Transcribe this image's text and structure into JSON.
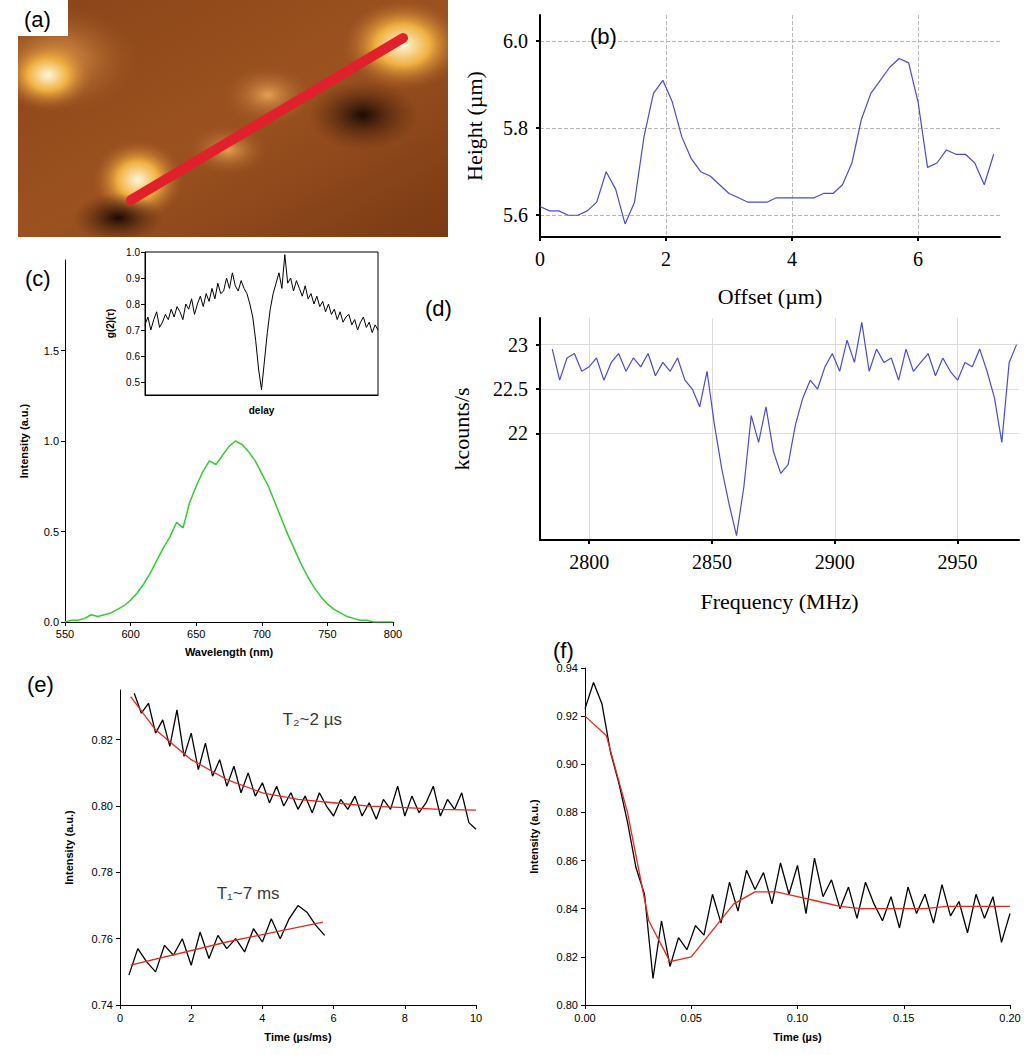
{
  "image_panel": {
    "label": "(a)"
  },
  "chart_data": [
    {
      "type": "line",
      "title": "(b)",
      "x_label": "Offset (µm)",
      "y_label": "Height (µm)",
      "xlim": [
        0,
        7.3
      ],
      "ylim": [
        5.55,
        6.06
      ],
      "xticks": [
        0,
        2,
        4,
        6
      ],
      "yticks": [
        5.6,
        5.8,
        {
          "value": 6,
          "label": "6.0"
        }
      ],
      "grid": true,
      "series": [
        {
          "color": "#4a4ad8",
          "x": [
            0,
            0.15,
            0.3,
            0.45,
            0.6,
            0.75,
            0.9,
            1.05,
            1.2,
            1.35,
            1.5,
            1.65,
            1.8,
            1.95,
            2.1,
            2.25,
            2.4,
            2.55,
            2.7,
            2.85,
            3.0,
            3.15,
            3.3,
            3.45,
            3.6,
            3.75,
            3.9,
            4.05,
            4.2,
            4.35,
            4.5,
            4.65,
            4.8,
            4.95,
            5.1,
            5.25,
            5.4,
            5.55,
            5.7,
            5.85,
            6.0,
            6.15,
            6.3,
            6.45,
            6.6,
            6.75,
            6.9,
            7.05,
            7.2
          ],
          "values": [
            5.62,
            5.61,
            5.61,
            5.6,
            5.6,
            5.61,
            5.63,
            5.7,
            5.66,
            5.58,
            5.63,
            5.78,
            5.88,
            5.91,
            5.86,
            5.78,
            5.73,
            5.7,
            5.69,
            5.67,
            5.65,
            5.64,
            5.63,
            5.63,
            5.63,
            5.64,
            5.64,
            5.64,
            5.64,
            5.64,
            5.65,
            5.65,
            5.67,
            5.72,
            5.82,
            5.88,
            5.91,
            5.94,
            5.96,
            5.95,
            5.86,
            5.71,
            5.72,
            5.75,
            5.74,
            5.74,
            5.72,
            5.67,
            5.74
          ]
        }
      ]
    },
    {
      "type": "line",
      "title": "(c)",
      "x_label": "Wavelength (nm)",
      "y_label": "Intensity (a.u.)",
      "xlim": [
        550,
        800
      ],
      "ylim": [
        0,
        2.0
      ],
      "xticks": [
        550,
        600,
        650,
        700,
        750,
        800
      ],
      "yticks": [
        {
          "value": 0,
          "label": "0.0"
        },
        0.5,
        {
          "value": 1,
          "label": "1.0"
        },
        1.5
      ],
      "grid": false,
      "series": [
        {
          "color": "#33cc33",
          "x": [
            550,
            555,
            560,
            565,
            570,
            575,
            580,
            585,
            590,
            595,
            600,
            605,
            610,
            615,
            620,
            625,
            630,
            635,
            640,
            645,
            650,
            655,
            660,
            665,
            670,
            675,
            680,
            685,
            690,
            695,
            700,
            705,
            710,
            715,
            720,
            725,
            730,
            735,
            740,
            745,
            750,
            755,
            760,
            765,
            770,
            775,
            780,
            785,
            790,
            795,
            800
          ],
          "values": [
            0.0,
            0.01,
            0.01,
            0.02,
            0.04,
            0.03,
            0.04,
            0.05,
            0.07,
            0.09,
            0.12,
            0.16,
            0.21,
            0.27,
            0.34,
            0.41,
            0.47,
            0.55,
            0.52,
            0.66,
            0.75,
            0.83,
            0.89,
            0.87,
            0.92,
            0.97,
            1.0,
            0.98,
            0.94,
            0.89,
            0.82,
            0.75,
            0.66,
            0.57,
            0.48,
            0.4,
            0.32,
            0.25,
            0.19,
            0.14,
            0.1,
            0.07,
            0.05,
            0.03,
            0.02,
            0.01,
            0.01,
            0.0,
            0.0,
            0.0,
            0.0
          ]
        }
      ]
    },
    {
      "type": "line",
      "x_label": "delay",
      "y_label": "g(2)(τ)",
      "xlim": [
        -40,
        40
      ],
      "ylim": [
        0.45,
        1.0
      ],
      "yticks": [
        0.5,
        0.6,
        0.7,
        0.8,
        0.9,
        {
          "value": 1,
          "label": "1.0"
        }
      ],
      "tick_labels": "y",
      "grid": false,
      "series": [
        {
          "color": "#000000",
          "x": [
            -40,
            -39,
            -38,
            -37,
            -36,
            -35,
            -34,
            -33,
            -32,
            -31,
            -30,
            -29,
            -28,
            -27,
            -26,
            -25,
            -24,
            -23,
            -22,
            -21,
            -20,
            -19,
            -18,
            -17,
            -16,
            -15,
            -14,
            -13,
            -12,
            -11,
            -10,
            -9,
            -8,
            -7,
            -6,
            -5,
            -4,
            -3,
            -2,
            -1,
            0,
            1,
            2,
            3,
            4,
            5,
            6,
            7,
            8,
            9,
            10,
            11,
            12,
            13,
            14,
            15,
            16,
            17,
            18,
            19,
            20,
            21,
            22,
            23,
            24,
            25,
            26,
            27,
            28,
            29,
            30,
            31,
            32,
            33,
            34,
            35,
            36,
            37,
            38,
            39,
            40
          ],
          "values": [
            0.72,
            0.75,
            0.7,
            0.74,
            0.77,
            0.71,
            0.73,
            0.76,
            0.74,
            0.78,
            0.75,
            0.79,
            0.77,
            0.74,
            0.8,
            0.78,
            0.82,
            0.76,
            0.8,
            0.83,
            0.79,
            0.84,
            0.81,
            0.86,
            0.82,
            0.88,
            0.84,
            0.85,
            0.9,
            0.86,
            0.92,
            0.87,
            0.85,
            0.89,
            0.86,
            0.84,
            0.8,
            0.75,
            0.66,
            0.55,
            0.47,
            0.58,
            0.69,
            0.78,
            0.84,
            0.88,
            0.92,
            0.86,
            0.99,
            0.88,
            0.9,
            0.85,
            0.89,
            0.86,
            0.83,
            0.87,
            0.82,
            0.84,
            0.8,
            0.83,
            0.79,
            0.81,
            0.77,
            0.8,
            0.76,
            0.78,
            0.74,
            0.77,
            0.73,
            0.75,
            0.76,
            0.72,
            0.74,
            0.7,
            0.73,
            0.75,
            0.71,
            0.73,
            0.69,
            0.72,
            0.7
          ]
        }
      ]
    },
    {
      "type": "line",
      "title": "(d)",
      "x_label": "Frequency (MHz)",
      "y_label": "kcounts/s",
      "xlim": [
        2780,
        2975
      ],
      "ylim": [
        20.8,
        23.3
      ],
      "xticks": [
        2800,
        2850,
        2900,
        2950
      ],
      "yticks": [
        22,
        22.5,
        23
      ],
      "grid": true,
      "series": [
        {
          "color": "#4a4ad8",
          "x": [
            2785,
            2788,
            2791,
            2794,
            2797,
            2800,
            2803,
            2806,
            2809,
            2812,
            2815,
            2818,
            2821,
            2824,
            2827,
            2830,
            2833,
            2836,
            2839,
            2842,
            2845,
            2848,
            2851,
            2854,
            2857,
            2860,
            2863,
            2866,
            2869,
            2872,
            2875,
            2878,
            2881,
            2884,
            2887,
            2890,
            2893,
            2896,
            2899,
            2902,
            2905,
            2908,
            2911,
            2914,
            2917,
            2920,
            2923,
            2926,
            2929,
            2932,
            2935,
            2938,
            2941,
            2944,
            2947,
            2950,
            2953,
            2956,
            2959,
            2962,
            2965,
            2968,
            2971,
            2974
          ],
          "values": [
            22.95,
            22.6,
            22.85,
            22.9,
            22.7,
            22.75,
            22.85,
            22.6,
            22.8,
            22.9,
            22.7,
            22.85,
            22.75,
            22.9,
            22.65,
            22.8,
            22.7,
            22.85,
            22.6,
            22.5,
            22.3,
            22.7,
            22.1,
            21.6,
            21.2,
            20.85,
            21.4,
            22.2,
            21.9,
            22.3,
            21.8,
            21.55,
            21.65,
            22.1,
            22.4,
            22.6,
            22.5,
            22.75,
            22.9,
            22.7,
            23.05,
            22.8,
            23.25,
            22.7,
            22.95,
            22.8,
            22.85,
            22.6,
            22.95,
            22.7,
            22.8,
            22.9,
            22.65,
            22.85,
            22.7,
            22.6,
            22.8,
            22.75,
            22.95,
            22.7,
            22.4,
            21.9,
            22.8,
            23.0
          ]
        }
      ]
    },
    {
      "type": "line",
      "title": "(e)",
      "x_label": "Time (µs/ms)",
      "y_label": "Intensity (a.u.)",
      "xlim": [
        0,
        10
      ],
      "ylim": [
        0.74,
        0.835
      ],
      "xticks": [
        0,
        2,
        4,
        6,
        8,
        10
      ],
      "yticks": [
        0.74,
        0.76,
        0.78,
        {
          "value": 0.8,
          "label": "0.80"
        },
        0.82
      ],
      "grid": false,
      "annotations": [
        {
          "text": "T₂~2 µs",
          "x": 5.4,
          "y": 0.826
        },
        {
          "text": "T₁~7 ms",
          "x": 3.6,
          "y": 0.7735
        }
      ],
      "series": [
        {
          "color": "#000000",
          "x": [
            0.4,
            0.6,
            0.8,
            1.0,
            1.2,
            1.4,
            1.6,
            1.8,
            2.0,
            2.2,
            2.4,
            2.6,
            2.8,
            3.0,
            3.2,
            3.4,
            3.6,
            3.8,
            4.0,
            4.2,
            4.4,
            4.6,
            4.8,
            5.0,
            5.2,
            5.4,
            5.6,
            5.8,
            6.0,
            6.2,
            6.4,
            6.6,
            6.8,
            7.0,
            7.2,
            7.4,
            7.6,
            7.8,
            8.0,
            8.2,
            8.4,
            8.6,
            8.8,
            9.0,
            9.2,
            9.4,
            9.6,
            9.8,
            10.0
          ],
          "values": [
            0.834,
            0.828,
            0.831,
            0.822,
            0.826,
            0.818,
            0.829,
            0.815,
            0.822,
            0.811,
            0.819,
            0.809,
            0.814,
            0.806,
            0.812,
            0.804,
            0.81,
            0.803,
            0.807,
            0.801,
            0.806,
            0.8,
            0.804,
            0.799,
            0.803,
            0.798,
            0.804,
            0.8,
            0.797,
            0.802,
            0.799,
            0.803,
            0.797,
            0.801,
            0.796,
            0.802,
            0.799,
            0.806,
            0.797,
            0.803,
            0.798,
            0.801,
            0.806,
            0.797,
            0.802,
            0.799,
            0.804,
            0.795,
            0.793
          ]
        },
        {
          "color": "#e8261f",
          "x": [
            0.3,
            1,
            2,
            3,
            4,
            5,
            6,
            7,
            8,
            9,
            10
          ],
          "values": [
            0.833,
            0.823,
            0.814,
            0.808,
            0.804,
            0.802,
            0.801,
            0.8,
            0.7995,
            0.799,
            0.7988
          ]
        },
        {
          "color": "#000000",
          "x": [
            0.25,
            0.5,
            0.75,
            1.0,
            1.25,
            1.5,
            1.75,
            2.0,
            2.25,
            2.5,
            2.75,
            3.0,
            3.25,
            3.5,
            3.75,
            4.0,
            4.25,
            4.5,
            4.75,
            5.0,
            5.25,
            5.5,
            5.75
          ],
          "values": [
            0.749,
            0.757,
            0.753,
            0.75,
            0.758,
            0.755,
            0.76,
            0.752,
            0.762,
            0.754,
            0.761,
            0.757,
            0.76,
            0.756,
            0.763,
            0.759,
            0.766,
            0.76,
            0.766,
            0.77,
            0.768,
            0.764,
            0.761
          ]
        },
        {
          "color": "#e8261f",
          "x": [
            0.3,
            3,
            5.7
          ],
          "values": [
            0.752,
            0.759,
            0.765
          ]
        }
      ]
    },
    {
      "type": "line",
      "title": "(f)",
      "x_label": "Time (µs)",
      "y_label": "Intensity (a.u.)",
      "xlim": [
        0,
        0.2
      ],
      "ylim": [
        0.8,
        0.94
      ],
      "xticks": [
        {
          "value": 0,
          "label": "0.00"
        },
        0.05,
        {
          "value": 0.1,
          "label": "0.10"
        },
        0.15,
        {
          "value": 0.2,
          "label": "0.20"
        }
      ],
      "yticks": [
        {
          "value": 0.8,
          "label": "0.80"
        },
        0.82,
        0.84,
        0.86,
        0.88,
        {
          "value": 0.9,
          "label": "0.90"
        },
        0.92,
        0.94
      ],
      "grid": false,
      "series": [
        {
          "color": "#000000",
          "x": [
            0,
            0.004,
            0.008,
            0.012,
            0.016,
            0.02,
            0.024,
            0.028,
            0.032,
            0.036,
            0.04,
            0.044,
            0.048,
            0.052,
            0.056,
            0.06,
            0.064,
            0.068,
            0.072,
            0.076,
            0.08,
            0.084,
            0.088,
            0.092,
            0.096,
            0.1,
            0.104,
            0.108,
            0.112,
            0.116,
            0.12,
            0.124,
            0.128,
            0.132,
            0.136,
            0.14,
            0.144,
            0.148,
            0.152,
            0.156,
            0.16,
            0.164,
            0.168,
            0.172,
            0.176,
            0.18,
            0.184,
            0.188,
            0.192,
            0.196,
            0.2
          ],
          "values": [
            0.923,
            0.934,
            0.925,
            0.905,
            0.892,
            0.876,
            0.857,
            0.846,
            0.811,
            0.835,
            0.816,
            0.828,
            0.823,
            0.833,
            0.829,
            0.846,
            0.834,
            0.851,
            0.839,
            0.856,
            0.848,
            0.855,
            0.842,
            0.859,
            0.846,
            0.858,
            0.838,
            0.861,
            0.845,
            0.852,
            0.84,
            0.849,
            0.836,
            0.851,
            0.842,
            0.835,
            0.845,
            0.832,
            0.849,
            0.838,
            0.846,
            0.834,
            0.85,
            0.837,
            0.843,
            0.83,
            0.846,
            0.836,
            0.845,
            0.826,
            0.838
          ]
        },
        {
          "color": "#e8261f",
          "x": [
            0,
            0.01,
            0.02,
            0.03,
            0.04,
            0.05,
            0.06,
            0.07,
            0.08,
            0.09,
            0.1,
            0.11,
            0.12,
            0.13,
            0.14,
            0.15,
            0.16,
            0.17,
            0.18,
            0.19,
            0.2
          ],
          "values": [
            0.92,
            0.912,
            0.88,
            0.835,
            0.818,
            0.82,
            0.831,
            0.842,
            0.847,
            0.847,
            0.845,
            0.843,
            0.841,
            0.84,
            0.84,
            0.84,
            0.84,
            0.841,
            0.841,
            0.841,
            0.841
          ]
        }
      ]
    }
  ]
}
